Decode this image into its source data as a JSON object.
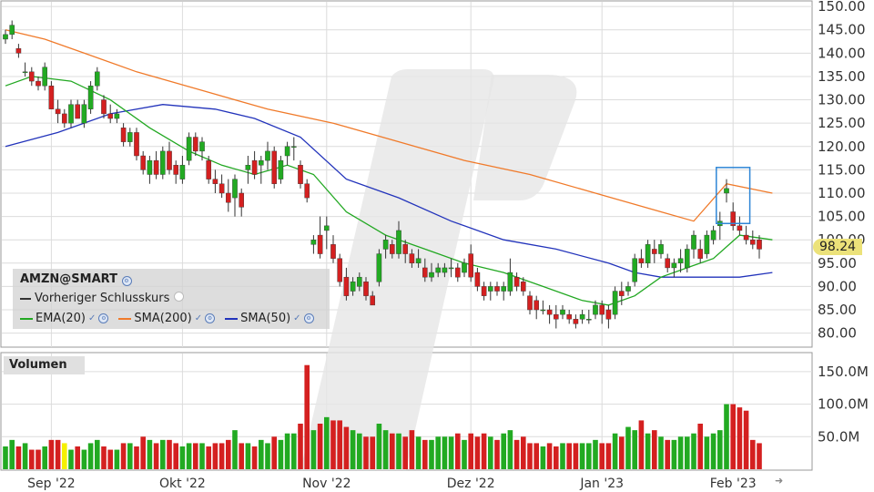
{
  "instrument": "AMZN@SMART",
  "prev_close_label": "Vorheriger Schlusskurs",
  "indicators": [
    {
      "label": "EMA(20)",
      "color": "#22a822"
    },
    {
      "label": "SMA(200)",
      "color": "#f07a2a"
    },
    {
      "label": "SMA(50)",
      "color": "#2233bb"
    }
  ],
  "volume_label": "Volumen",
  "last_price_label": "98.24",
  "colors": {
    "up": "#22aa22",
    "down": "#d42020",
    "highlight_box": "#2e86d6",
    "volume_highlight": "#f5f000"
  },
  "chart_data": {
    "type": "candlestick",
    "price_axis": {
      "ylim": [
        77,
        151
      ],
      "ticks": [
        "150.00",
        "145.00",
        "140.00",
        "135.00",
        "130.00",
        "125.00",
        "120.00",
        "115.00",
        "110.00",
        "105.00",
        "100.00",
        "95.00",
        "90.00",
        "85.00",
        "80.00"
      ]
    },
    "volume_axis": {
      "ylim": [
        0,
        175
      ],
      "unit": "M",
      "ticks": [
        "150.0M",
        "100.0M",
        "50.0M"
      ]
    },
    "x_labels": [
      {
        "label": "Sep '22",
        "index": 7
      },
      {
        "label": "Okt '22",
        "index": 27
      },
      {
        "label": "Nov '22",
        "index": 49
      },
      {
        "label": "Dez '22",
        "index": 71
      },
      {
        "label": "Jan '23",
        "index": 91
      },
      {
        "label": "Feb '23",
        "index": 111
      }
    ],
    "candles": [
      [
        143,
        145,
        142,
        144
      ],
      [
        144,
        147,
        143,
        146
      ],
      [
        141,
        142,
        139,
        140
      ],
      [
        136,
        138,
        135,
        136
      ],
      [
        136,
        137,
        133,
        134
      ],
      [
        134,
        135,
        132,
        133
      ],
      [
        133,
        138,
        132,
        137
      ],
      [
        133,
        134,
        128,
        128
      ],
      [
        128,
        130,
        125,
        127
      ],
      [
        127,
        128,
        124,
        125
      ],
      [
        125,
        130,
        124,
        129
      ],
      [
        129,
        130,
        126,
        126
      ],
      [
        125,
        130,
        124,
        129
      ],
      [
        128,
        134,
        127,
        133
      ],
      [
        133,
        137,
        132,
        136
      ],
      [
        130,
        131,
        126,
        127
      ],
      [
        127,
        129,
        125,
        126
      ],
      [
        126,
        128,
        125,
        127
      ],
      [
        124,
        125,
        120,
        121
      ],
      [
        121,
        124,
        120,
        123
      ],
      [
        123,
        124,
        117,
        118
      ],
      [
        118,
        119,
        114,
        115
      ],
      [
        114,
        118,
        112,
        117
      ],
      [
        117,
        119,
        113,
        114
      ],
      [
        114,
        120,
        113,
        119
      ],
      [
        119,
        121,
        114,
        115
      ],
      [
        116,
        117,
        112,
        114
      ],
      [
        113,
        118,
        112,
        116
      ],
      [
        117,
        123,
        116,
        122
      ],
      [
        122,
        123,
        118,
        119
      ],
      [
        119,
        122,
        117,
        121
      ],
      [
        117,
        118,
        112,
        113
      ],
      [
        113,
        115,
        110,
        112
      ],
      [
        112,
        114,
        109,
        110
      ],
      [
        110,
        113,
        106,
        108
      ],
      [
        109,
        114,
        105,
        113
      ],
      [
        110,
        111,
        105,
        107
      ],
      [
        115,
        118,
        112,
        116
      ],
      [
        117,
        119,
        113,
        114
      ],
      [
        116,
        118,
        112,
        117
      ],
      [
        117,
        121,
        115,
        119
      ],
      [
        119,
        120,
        111,
        112
      ],
      [
        113,
        118,
        112,
        117
      ],
      [
        118,
        121,
        116,
        120
      ],
      [
        120,
        122,
        117,
        120
      ],
      [
        116,
        117,
        111,
        112
      ],
      [
        112,
        113,
        108,
        109
      ],
      [
        99,
        101,
        97,
        100
      ],
      [
        101,
        105,
        96,
        97
      ],
      [
        102,
        105,
        98,
        103
      ],
      [
        99,
        101,
        95,
        96
      ],
      [
        96,
        97,
        90,
        91
      ],
      [
        92,
        94,
        87,
        88
      ],
      [
        89,
        92,
        88,
        91
      ],
      [
        90,
        93,
        89,
        92
      ],
      [
        91,
        92,
        87,
        88
      ],
      [
        88,
        89,
        86,
        86
      ],
      [
        91,
        98,
        90,
        97
      ],
      [
        98,
        101,
        96,
        100
      ],
      [
        99,
        100,
        96,
        97
      ],
      [
        97,
        104,
        96,
        102
      ],
      [
        99,
        100,
        95,
        97
      ],
      [
        97,
        98,
        94,
        95
      ],
      [
        95,
        98,
        94,
        96
      ],
      [
        94,
        96,
        91,
        92
      ],
      [
        92,
        95,
        91,
        93
      ],
      [
        93,
        95,
        92,
        94
      ],
      [
        93,
        95,
        92,
        94
      ],
      [
        94,
        96,
        92,
        94
      ],
      [
        94,
        95,
        91,
        92
      ],
      [
        93,
        96,
        92,
        95
      ],
      [
        97,
        99,
        91,
        92
      ],
      [
        93,
        94,
        89,
        90
      ],
      [
        90,
        91,
        87,
        88
      ],
      [
        89,
        91,
        87,
        90
      ],
      [
        90,
        91,
        88,
        89
      ],
      [
        89,
        91,
        87,
        90
      ],
      [
        89,
        96,
        88,
        93
      ],
      [
        92,
        93,
        89,
        90
      ],
      [
        91,
        92,
        88,
        89
      ],
      [
        88,
        89,
        84,
        85
      ],
      [
        87,
        88,
        83,
        85
      ],
      [
        85,
        87,
        84,
        85
      ],
      [
        85,
        86,
        82,
        84
      ],
      [
        84,
        86,
        81,
        83
      ],
      [
        84,
        86,
        83,
        85
      ],
      [
        84,
        85,
        82,
        83
      ],
      [
        83,
        84,
        81,
        82
      ],
      [
        83,
        85,
        82,
        84
      ],
      [
        83,
        85,
        82,
        83
      ],
      [
        84,
        87,
        83,
        86
      ],
      [
        86,
        87,
        82,
        84
      ],
      [
        85,
        86,
        81,
        83
      ],
      [
        84,
        90,
        83,
        89
      ],
      [
        89,
        91,
        86,
        88
      ],
      [
        89,
        91,
        88,
        90
      ],
      [
        91,
        97,
        90,
        96
      ],
      [
        96,
        98,
        94,
        95
      ],
      [
        95,
        100,
        94,
        99
      ],
      [
        98,
        100,
        95,
        97
      ],
      [
        97,
        100,
        96,
        99
      ],
      [
        96,
        97,
        93,
        94
      ],
      [
        94,
        96,
        92,
        95
      ],
      [
        95,
        98,
        93,
        96
      ],
      [
        94,
        99,
        93,
        98
      ],
      [
        98,
        102,
        96,
        101
      ],
      [
        98,
        100,
        95,
        96
      ],
      [
        97,
        102,
        96,
        101
      ],
      [
        100,
        103,
        99,
        102
      ],
      [
        103,
        106,
        100,
        104
      ],
      [
        110,
        113,
        108,
        111
      ],
      [
        106,
        108,
        102,
        103
      ],
      [
        103,
        105,
        101,
        102
      ],
      [
        101,
        103,
        99,
        100
      ],
      [
        100,
        102,
        98,
        99
      ],
      [
        100,
        101,
        96,
        98
      ]
    ],
    "volumes": [
      35,
      45,
      35,
      40,
      30,
      30,
      35,
      45,
      45,
      40,
      30,
      35,
      30,
      40,
      45,
      35,
      30,
      30,
      40,
      40,
      35,
      50,
      45,
      40,
      45,
      45,
      40,
      35,
      40,
      40,
      40,
      35,
      40,
      40,
      45,
      60,
      40,
      40,
      35,
      45,
      40,
      50,
      45,
      55,
      55,
      70,
      160,
      60,
      70,
      80,
      75,
      75,
      65,
      60,
      55,
      50,
      50,
      70,
      60,
      55,
      55,
      50,
      60,
      50,
      45,
      45,
      50,
      50,
      50,
      55,
      45,
      55,
      50,
      55,
      50,
      45,
      55,
      60,
      45,
      50,
      40,
      40,
      35,
      40,
      35,
      40,
      40,
      40,
      40,
      40,
      45,
      40,
      40,
      55,
      50,
      65,
      60,
      75,
      55,
      60,
      50,
      45,
      45,
      50,
      50,
      55,
      70,
      50,
      55,
      60,
      100,
      100,
      95,
      90,
      45,
      40
    ],
    "volume_highlight_index": 9,
    "sma200": [
      [
        0,
        145
      ],
      [
        6,
        143
      ],
      [
        12,
        140
      ],
      [
        20,
        136
      ],
      [
        30,
        132
      ],
      [
        40,
        128
      ],
      [
        50,
        125
      ],
      [
        60,
        121
      ],
      [
        70,
        117
      ],
      [
        80,
        114
      ],
      [
        90,
        110
      ],
      [
        100,
        106
      ],
      [
        105,
        104
      ],
      [
        110,
        112
      ],
      [
        117,
        110
      ]
    ],
    "sma50": [
      [
        0,
        120
      ],
      [
        8,
        123
      ],
      [
        16,
        127
      ],
      [
        24,
        129
      ],
      [
        32,
        128
      ],
      [
        38,
        126
      ],
      [
        45,
        122
      ],
      [
        52,
        113
      ],
      [
        60,
        109
      ],
      [
        68,
        104
      ],
      [
        76,
        100
      ],
      [
        84,
        98
      ],
      [
        92,
        95
      ],
      [
        96,
        93
      ],
      [
        100,
        92
      ],
      [
        106,
        92
      ],
      [
        112,
        92
      ],
      [
        117,
        93
      ]
    ],
    "ema20": [
      [
        0,
        133
      ],
      [
        4,
        135
      ],
      [
        10,
        134
      ],
      [
        16,
        130
      ],
      [
        22,
        124
      ],
      [
        28,
        119
      ],
      [
        33,
        116
      ],
      [
        38,
        114
      ],
      [
        43,
        116
      ],
      [
        47,
        114
      ],
      [
        52,
        106
      ],
      [
        58,
        101
      ],
      [
        64,
        98
      ],
      [
        70,
        95
      ],
      [
        76,
        93
      ],
      [
        82,
        90
      ],
      [
        88,
        87
      ],
      [
        92,
        86
      ],
      [
        96,
        88
      ],
      [
        100,
        92
      ],
      [
        104,
        94
      ],
      [
        108,
        96
      ],
      [
        112,
        101
      ],
      [
        117,
        100
      ]
    ],
    "highlight_box_range": {
      "from_index": 109,
      "to_index": 113,
      "price_from": 103.5,
      "price_to": 115.5
    }
  }
}
